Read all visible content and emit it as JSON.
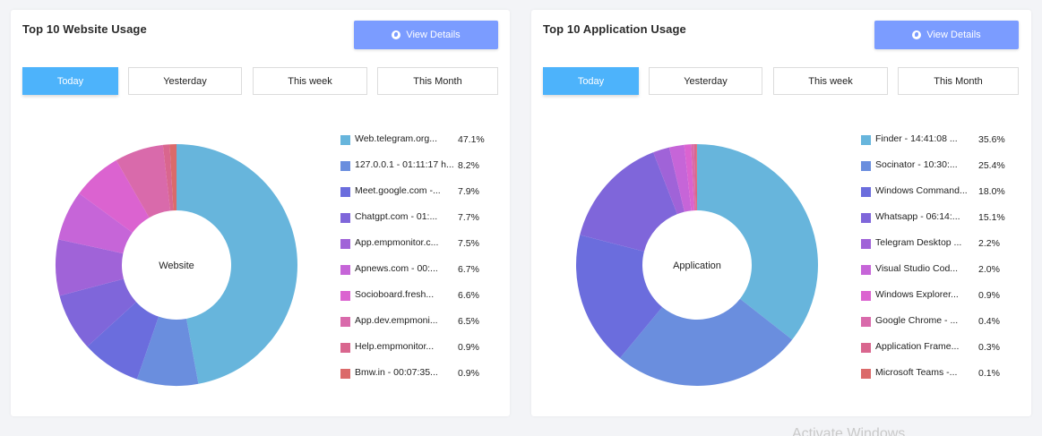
{
  "website_card": {
    "title": "Top 10 Website Usage",
    "view_details_label": "View Details",
    "tabs": [
      "Today",
      "Yesterday",
      "This week",
      "This Month"
    ],
    "active_tab": "Today",
    "center_label": "Website"
  },
  "application_card": {
    "title": "Top 10 Application Usage",
    "view_details_label": "View Details",
    "tabs": [
      "Today",
      "Yesterday",
      "This week",
      "This Month"
    ],
    "active_tab": "Today",
    "center_label": "Application"
  },
  "watermark": "Activate Windows",
  "chart_data": [
    {
      "type": "pie",
      "donut": true,
      "center_text": "Website",
      "legend_position": "right",
      "slices": [
        {
          "label": "Web.telegram.org...",
          "percent_label": "47.1%",
          "value": 47.1,
          "color": "#67b5dc"
        },
        {
          "label": "127.0.0.1 - 01:11:17 h...",
          "percent_label": "8.2%",
          "value": 8.2,
          "color": "#6a8ede"
        },
        {
          "label": "Meet.google.com -...",
          "percent_label": "7.9%",
          "value": 7.9,
          "color": "#6b6ddd"
        },
        {
          "label": "Chatgpt.com - 01:...",
          "percent_label": "7.7%",
          "value": 7.7,
          "color": "#7f66da"
        },
        {
          "label": "App.empmonitor.c...",
          "percent_label": "7.5%",
          "value": 7.5,
          "color": "#a063d8"
        },
        {
          "label": "Apnews.com - 00:...",
          "percent_label": "6.7%",
          "value": 6.7,
          "color": "#c665d8"
        },
        {
          "label": "Socioboard.fresh...",
          "percent_label": "6.6%",
          "value": 6.6,
          "color": "#db63d0"
        },
        {
          "label": "App.dev.empmoni...",
          "percent_label": "6.5%",
          "value": 6.5,
          "color": "#d96aab"
        },
        {
          "label": "Help.empmonitor...",
          "percent_label": "0.9%",
          "value": 0.9,
          "color": "#d9668e"
        },
        {
          "label": "Bmw.in - 00:07:35...",
          "percent_label": "0.9%",
          "value": 0.9,
          "color": "#db6a6a"
        }
      ]
    },
    {
      "type": "pie",
      "donut": true,
      "center_text": "Application",
      "legend_position": "right",
      "slices": [
        {
          "label": "Finder - 14:41:08 ...",
          "percent_label": "35.6%",
          "value": 35.6,
          "color": "#67b5dc"
        },
        {
          "label": "Socinator - 10:30:...",
          "percent_label": "25.4%",
          "value": 25.4,
          "color": "#6a8ede"
        },
        {
          "label": "Windows Command...",
          "percent_label": "18.0%",
          "value": 18.0,
          "color": "#6b6ddd"
        },
        {
          "label": "Whatsapp - 06:14:...",
          "percent_label": "15.1%",
          "value": 15.1,
          "color": "#7f66da"
        },
        {
          "label": "Telegram Desktop ...",
          "percent_label": "2.2%",
          "value": 2.2,
          "color": "#a063d8"
        },
        {
          "label": "Visual Studio Cod...",
          "percent_label": "2.0%",
          "value": 2.0,
          "color": "#c665d8"
        },
        {
          "label": "Windows Explorer...",
          "percent_label": "0.9%",
          "value": 0.9,
          "color": "#db63d0"
        },
        {
          "label": "Google Chrome - ...",
          "percent_label": "0.4%",
          "value": 0.4,
          "color": "#d96aab"
        },
        {
          "label": "Application Frame...",
          "percent_label": "0.3%",
          "value": 0.3,
          "color": "#d9668e"
        },
        {
          "label": "Microsoft Teams -...",
          "percent_label": "0.1%",
          "value": 0.1,
          "color": "#db6a6a"
        }
      ]
    }
  ]
}
